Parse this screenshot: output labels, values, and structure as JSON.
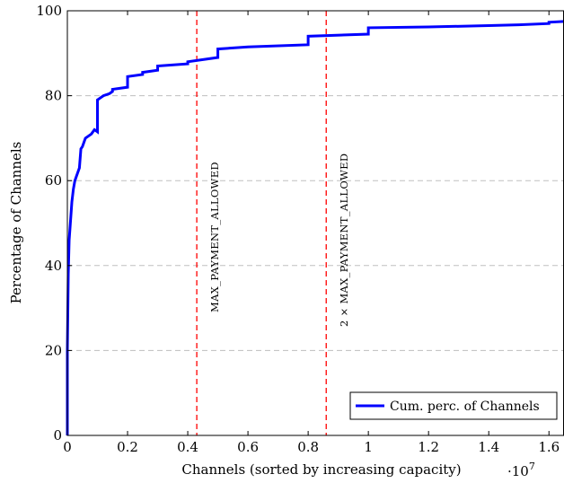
{
  "chart_data": {
    "type": "line",
    "xlabel": "Channels (sorted by increasing capacity)",
    "ylabel": "Percentage of Channels",
    "x_multiplier_label": "·10",
    "x_multiplier_exponent": "7",
    "xlim": [
      0,
      16500000
    ],
    "ylim": [
      0,
      100
    ],
    "x_ticks": [
      0,
      2000000,
      4000000,
      6000000,
      8000000,
      10000000,
      12000000,
      14000000,
      16000000
    ],
    "x_tick_labels": [
      "0",
      "0.2",
      "0.4",
      "0.6",
      "0.8",
      "1",
      "1.2",
      "1.4",
      "1.6"
    ],
    "y_ticks": [
      0,
      20,
      40,
      60,
      80,
      100
    ],
    "y_tick_labels": [
      "0",
      "20",
      "40",
      "60",
      "80",
      "100"
    ],
    "grid": "horizontal-dashed",
    "legend_position": "bottom-right",
    "series": [
      {
        "name": "Cum. perc. of Channels",
        "color": "#0000ff",
        "x": [
          0,
          0,
          30000,
          60000,
          100000,
          150000,
          200000,
          250000,
          300000,
          350000,
          400000,
          450000,
          500000,
          550000,
          600000,
          700000,
          800000,
          900000,
          1000000,
          1000000,
          1100000,
          1200000,
          1400000,
          1500000,
          1500000,
          2000000,
          2000000,
          2500000,
          2500000,
          3000000,
          3000000,
          4000000,
          4000000,
          5000000,
          5000000,
          6000000,
          8000000,
          8000000,
          10000000,
          10000000,
          12000000,
          14000000,
          15000000,
          16000000,
          16000000,
          16500000
        ],
        "y": [
          0,
          20,
          38,
          46,
          50,
          55,
          58,
          60,
          61,
          62,
          63,
          67.5,
          68,
          69,
          70,
          70.5,
          71,
          72,
          71.5,
          79,
          79.5,
          80,
          80.5,
          81,
          81.5,
          82,
          84.5,
          85,
          85.5,
          86,
          87,
          87.5,
          88,
          89,
          91,
          91.5,
          92,
          94,
          94.5,
          96,
          96.2,
          96.5,
          96.7,
          97,
          97.3,
          97.5
        ]
      }
    ],
    "annotations": [
      {
        "type": "vline",
        "x": 4300000,
        "color": "#ff0000",
        "label": "MAX_PAYMENT_ALLOWED"
      },
      {
        "type": "vline",
        "x": 8600000,
        "color": "#ff0000",
        "label": "2 × MAX_PAYMENT_ALLOWED"
      }
    ]
  }
}
